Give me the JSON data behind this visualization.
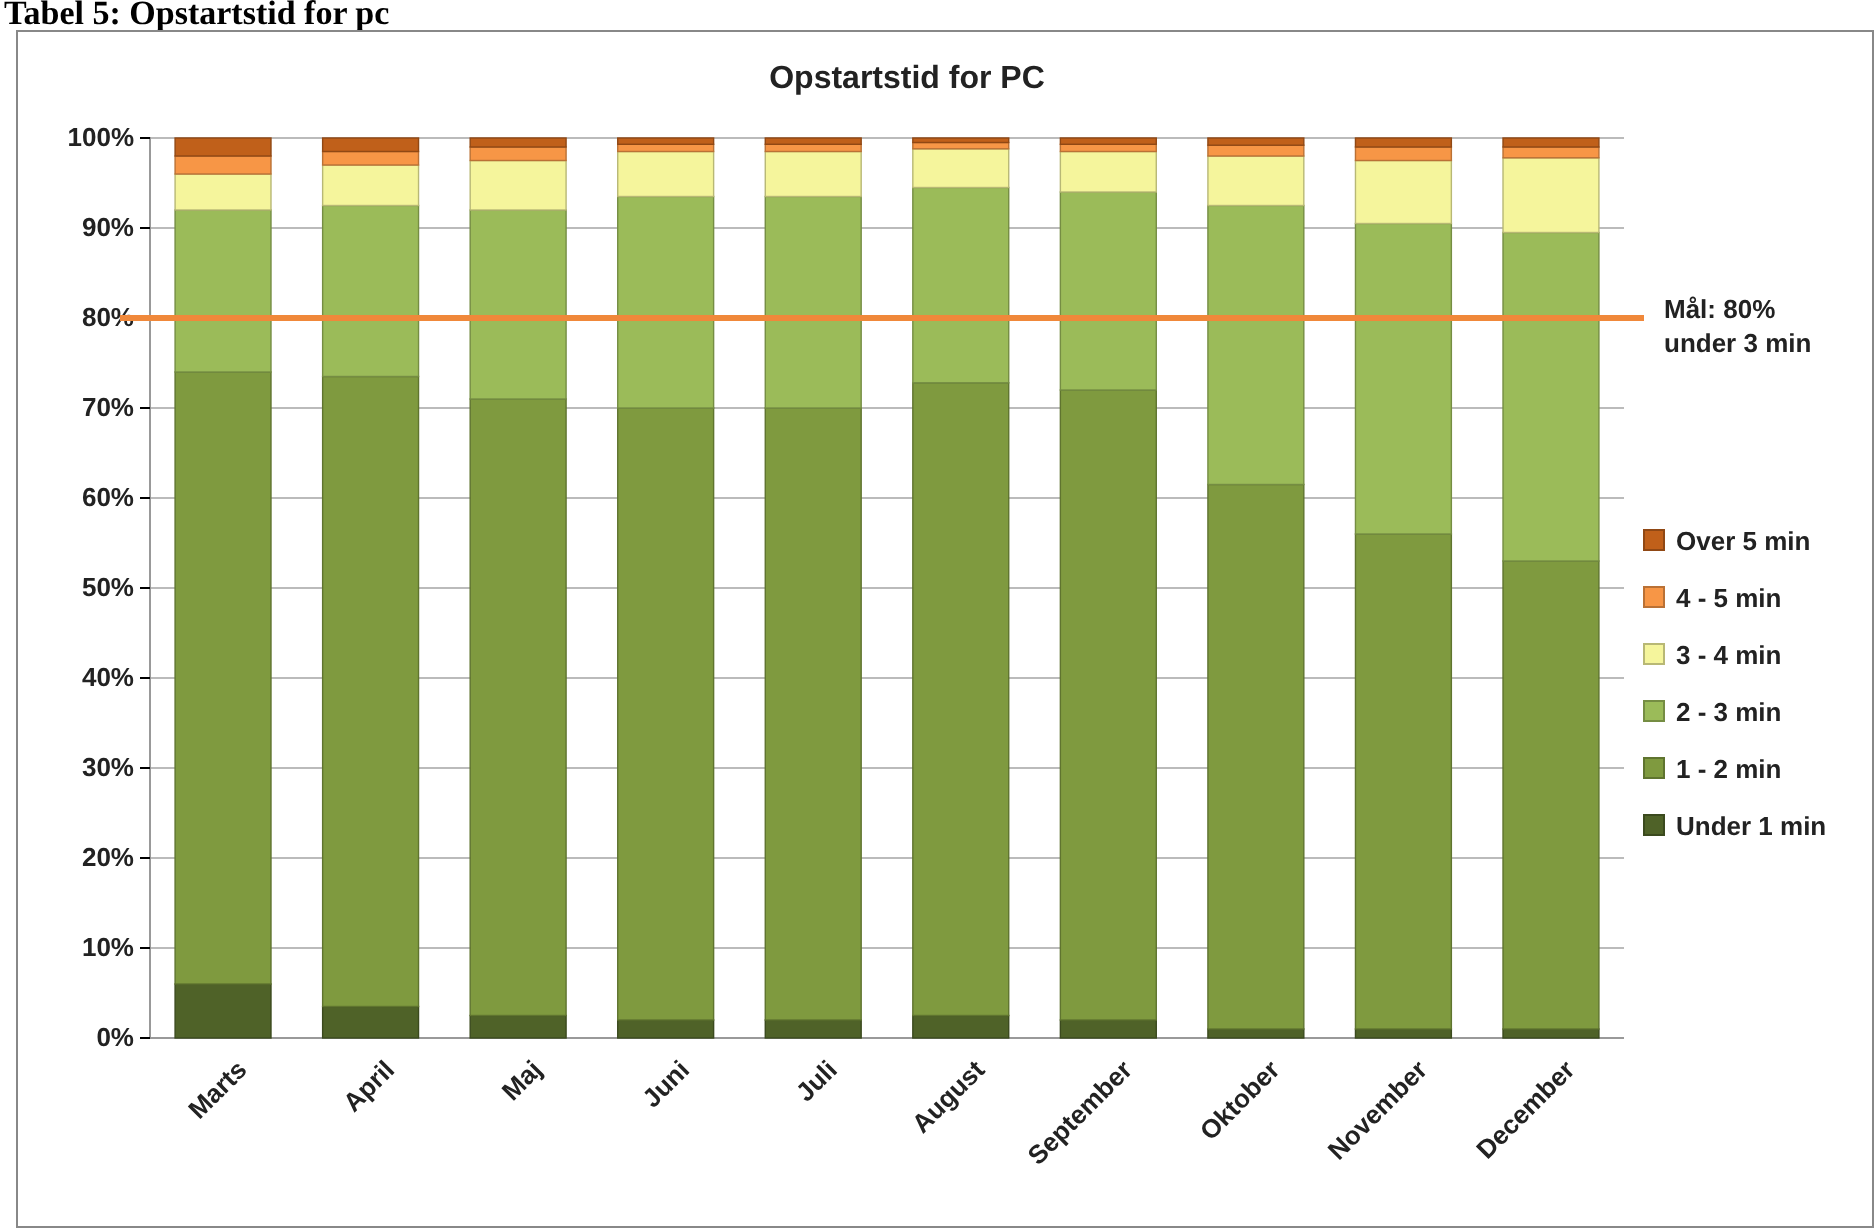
{
  "chart_data": {
    "type": "bar",
    "title": "Opstartstid for PC",
    "annotations": [
      "Tabel 5: Opstartstid for pc"
    ],
    "categories": [
      "Marts",
      "April",
      "Maj",
      "Juni",
      "Juli",
      "August",
      "September",
      "Oktober",
      "November",
      "December"
    ],
    "stacked": true,
    "series": [
      {
        "name": "Under 1 min",
        "color": "#4f6228",
        "values": [
          6,
          3.5,
          2.5,
          2,
          2,
          2.5,
          2,
          1,
          1,
          1
        ]
      },
      {
        "name": "1 - 2 min",
        "color": "#7f9a3f",
        "values": [
          68,
          70,
          68.5,
          68,
          68,
          70.3,
          70,
          60.5,
          55,
          52
        ]
      },
      {
        "name": "2 - 3 min",
        "color": "#9bbb59",
        "values": [
          18,
          19,
          21,
          23.5,
          23.5,
          21.7,
          22,
          31,
          34.5,
          36.5
        ]
      },
      {
        "name": "3 - 4 min",
        "color": "#f5f59c",
        "values": [
          4,
          4.5,
          5.5,
          5,
          5,
          4.3,
          4.5,
          5.5,
          7,
          8.3
        ]
      },
      {
        "name": "4 - 5 min",
        "color": "#f79646",
        "values": [
          2,
          1.5,
          1.5,
          0.8,
          0.8,
          0.7,
          0.8,
          1.2,
          1.5,
          1.2
        ]
      },
      {
        "name": "Over 5 min",
        "color": "#c0601a",
        "values": [
          2,
          1.5,
          1,
          0.7,
          0.7,
          0.5,
          0.7,
          0.8,
          1,
          1
        ]
      }
    ],
    "ylim": [
      0,
      100
    ],
    "yticks": [
      {
        "value": 0,
        "label": "0%"
      },
      {
        "value": 10,
        "label": "10%"
      },
      {
        "value": 20,
        "label": "20%"
      },
      {
        "value": 30,
        "label": "30%"
      },
      {
        "value": 40,
        "label": "40%"
      },
      {
        "value": 50,
        "label": "50%"
      },
      {
        "value": 60,
        "label": "60%"
      },
      {
        "value": 70,
        "label": "70%"
      },
      {
        "value": 80,
        "label": "80%"
      },
      {
        "value": 90,
        "label": "90%"
      },
      {
        "value": 100,
        "label": "100%"
      }
    ],
    "grid": "y",
    "legend": "right",
    "ref_lines": [
      {
        "axis": "y",
        "value": 80,
        "label": "Mål: 80%\nunder 3 min",
        "color": "#f0883a"
      }
    ]
  }
}
